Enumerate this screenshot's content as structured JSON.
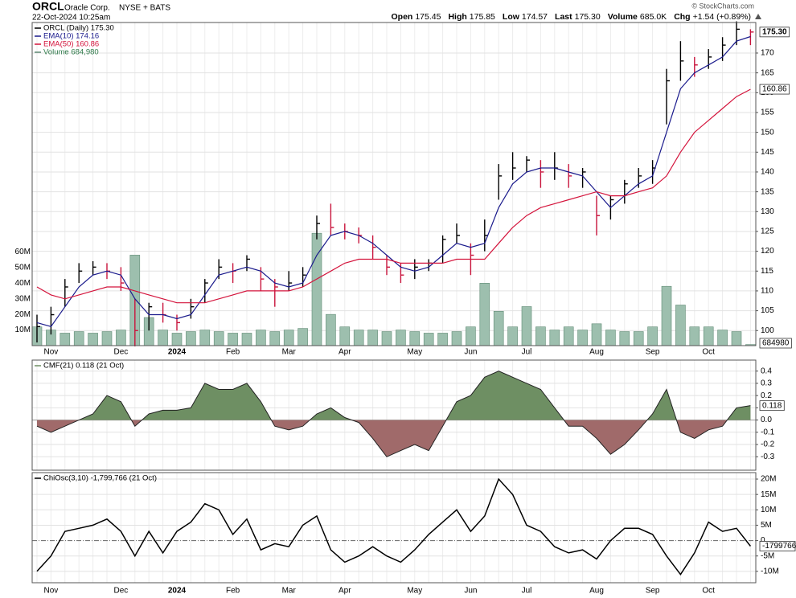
{
  "header": {
    "symbol": "ORCL",
    "name": "Oracle Corp.",
    "exchange": "NYSE + BATS",
    "timestamp": "22-Oct-2024 10:25am",
    "copyright": "© StockCharts.com",
    "quote": [
      {
        "label": "Open",
        "value": "175.45"
      },
      {
        "label": "High",
        "value": "175.85"
      },
      {
        "label": "Low",
        "value": "174.57"
      },
      {
        "label": "Last",
        "value": "175.30"
      },
      {
        "label": "Volume",
        "value": "685.0K"
      },
      {
        "label": "Chg",
        "value": "+1.54 (+0.89%)"
      }
    ]
  },
  "chart_data": [
    {
      "type": "ohlc",
      "categories": [
        null,
        "Nov",
        null,
        null,
        null,
        null,
        "Dec",
        null,
        null,
        null,
        "2024",
        null,
        null,
        null,
        "Feb",
        null,
        null,
        null,
        "Mar",
        null,
        null,
        null,
        "Apr",
        null,
        null,
        null,
        null,
        "May",
        null,
        null,
        null,
        "Jun",
        null,
        null,
        null,
        "Jul",
        null,
        null,
        null,
        null,
        "Aug",
        null,
        null,
        null,
        "Sep",
        null,
        null,
        null,
        "Oct",
        null,
        null,
        null
      ],
      "series": [
        {
          "name": "ORCL (Daily) 175.30",
          "color": "#000000",
          "down_color": "#c8143c",
          "last_label": "175.30",
          "high": [
            104,
            106,
            113,
            117,
            117.5,
            117,
            116,
            108,
            107,
            107,
            104,
            108,
            113,
            118,
            117,
            119,
            116,
            113,
            115,
            116,
            129,
            132,
            127,
            126,
            124,
            119,
            117,
            118,
            118,
            124,
            127,
            122,
            128,
            142,
            145,
            144,
            143,
            145,
            142,
            141,
            134,
            134,
            138,
            141,
            143,
            166,
            173,
            169,
            171,
            174,
            178,
            176
          ],
          "low": [
            97,
            99,
            106,
            112,
            114,
            113,
            110,
            96,
            100,
            102,
            100,
            103,
            107,
            113,
            112,
            115,
            110,
            106,
            110,
            111,
            123,
            124,
            123,
            122,
            118,
            114,
            112,
            113,
            115,
            117,
            122,
            114,
            120,
            133,
            138,
            140,
            136,
            138,
            136,
            136,
            124,
            128,
            132,
            136,
            137,
            152,
            163,
            164,
            166,
            168,
            172,
            172
          ],
          "close": [
            101,
            104,
            111,
            115,
            116,
            115,
            112,
            100,
            106,
            104,
            102,
            106,
            112,
            116,
            115,
            118,
            113,
            111,
            112,
            114,
            127,
            126,
            125,
            124,
            121,
            116,
            114,
            116,
            117,
            123,
            124,
            119,
            124,
            139,
            141,
            143,
            140,
            141,
            139,
            140,
            129,
            133,
            137,
            139,
            141,
            163,
            168,
            167,
            169,
            172,
            176,
            175.3
          ]
        },
        {
          "name": "EMA(10) 174.16",
          "color": "#1a1a8c",
          "values": [
            102,
            101,
            106,
            111,
            114,
            115,
            114,
            108,
            104,
            104,
            103,
            104,
            109,
            114,
            115,
            116,
            115,
            112,
            111,
            112,
            119,
            124,
            125,
            124,
            122,
            119,
            116,
            115,
            116,
            119,
            122,
            121,
            122,
            131,
            137,
            140,
            141,
            141,
            140,
            139,
            135,
            131,
            134,
            137,
            139,
            150,
            161,
            165,
            167,
            169,
            173,
            174.16
          ]
        },
        {
          "name": "EMA(50) 160.86",
          "color": "#d4143c",
          "last_label": "160.86",
          "values": [
            111,
            109,
            108,
            109,
            110,
            111,
            111,
            110,
            109,
            108,
            107,
            107,
            107,
            108,
            109,
            110,
            110,
            110,
            110,
            111,
            113,
            115,
            117,
            118,
            118,
            118,
            117,
            117,
            117,
            117,
            118,
            118,
            118,
            122,
            126,
            129,
            131,
            132,
            133,
            134,
            135,
            134,
            134,
            135,
            136,
            139,
            145,
            150,
            153,
            156,
            159,
            160.86
          ]
        },
        {
          "name": "Volume 684,980",
          "color": "#9dbfae",
          "edge_color": "#5f8a74",
          "text_color": "#2f7a4a",
          "axis": "y2",
          "last_label": "684980",
          "values": [
            12000000,
            10000000,
            8000000,
            9000000,
            8000000,
            9000000,
            10000000,
            58000000,
            18000000,
            10000000,
            8000000,
            9000000,
            10000000,
            9000000,
            8000000,
            8000000,
            10000000,
            9000000,
            10000000,
            11000000,
            72000000,
            20000000,
            12000000,
            10000000,
            10000000,
            9000000,
            10000000,
            9000000,
            8000000,
            8000000,
            9000000,
            12000000,
            40000000,
            22000000,
            12000000,
            25000000,
            12000000,
            10000000,
            12000000,
            10000000,
            14000000,
            10000000,
            9000000,
            9000000,
            12000000,
            38000000,
            26000000,
            12000000,
            12000000,
            10000000,
            9000000,
            684980
          ]
        }
      ],
      "ylim": [
        96.2,
        177.7
      ],
      "yticks": [
        100,
        105,
        110,
        115,
        120,
        125,
        130,
        135,
        140,
        145,
        150,
        155,
        160,
        165,
        170
      ],
      "y2lim": [
        0,
        207000000
      ],
      "y2ticks": [
        {
          "value": 10000000,
          "label": "10M"
        },
        {
          "value": 20000000,
          "label": "20M"
        },
        {
          "value": 30000000,
          "label": "30M"
        },
        {
          "value": 40000000,
          "label": "40M"
        },
        {
          "value": 50000000,
          "label": "50M"
        },
        {
          "value": 60000000,
          "label": "60M"
        }
      ],
      "grid": true
    },
    {
      "type": "area",
      "series": [
        {
          "name": "CMF(21) 0.118 (21 Oct)",
          "color": "#6e8f63",
          "neg_color": "#a06a6a",
          "last_label": "0.118",
          "values": [
            -0.05,
            -0.1,
            -0.05,
            0.0,
            0.05,
            0.2,
            0.15,
            -0.05,
            0.05,
            0.08,
            0.08,
            0.1,
            0.3,
            0.25,
            0.25,
            0.3,
            0.15,
            -0.05,
            -0.08,
            -0.05,
            0.05,
            0.1,
            0.02,
            -0.02,
            -0.15,
            -0.3,
            -0.25,
            -0.2,
            -0.25,
            -0.05,
            0.15,
            0.2,
            0.35,
            0.4,
            0.35,
            0.3,
            0.25,
            0.1,
            -0.05,
            -0.05,
            -0.15,
            -0.28,
            -0.2,
            -0.08,
            0.05,
            0.25,
            -0.1,
            -0.15,
            -0.08,
            -0.05,
            0.1,
            0.118
          ]
        }
      ],
      "ylim": [
        -0.41,
        0.49
      ],
      "yticks": [
        0.4,
        0.3,
        0.2,
        0.1,
        {
          "value": 0,
          "label": "0.0"
        },
        -0.1,
        -0.2,
        -0.3
      ],
      "grid": true
    },
    {
      "type": "line",
      "series": [
        {
          "name": "ChiOsc(3,10) -1,799,766 (21 Oct)",
          "color": "#000000",
          "last_label": "-1799766",
          "values": [
            -10000000,
            -5000000,
            3000000,
            4000000,
            5000000,
            7000000,
            3000000,
            -5000000,
            3000000,
            -4000000,
            3000000,
            6000000,
            12000000,
            10000000,
            2000000,
            7000000,
            -3000000,
            -1000000,
            -2000000,
            5000000,
            8000000,
            -3000000,
            -7000000,
            -5000000,
            -2000000,
            -5000000,
            -7000000,
            -3000000,
            2000000,
            6000000,
            10000000,
            3000000,
            8000000,
            20000000,
            15000000,
            5000000,
            3000000,
            -2000000,
            -4000000,
            -3000000,
            -6000000,
            0,
            4000000,
            4000000,
            2000000,
            -5000000,
            -11000000,
            -4000000,
            6000000,
            3000000,
            4000000,
            -1799766
          ]
        }
      ],
      "ylim": [
        -13700000,
        22100000
      ],
      "yticks": [
        {
          "value": 20000000,
          "label": "20M"
        },
        {
          "value": 15000000,
          "label": "15M"
        },
        {
          "value": 10000000,
          "label": "10M"
        },
        {
          "value": 5000000,
          "label": "5M"
        },
        0,
        {
          "value": -5000000,
          "label": "-5M"
        },
        {
          "value": -10000000,
          "label": "-10M"
        }
      ],
      "grid": true
    }
  ]
}
